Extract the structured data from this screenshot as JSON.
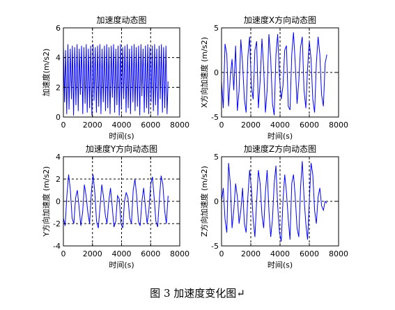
{
  "caption": "图 3  加速度变化图↵",
  "page_mark": "↵",
  "chart_data": [
    {
      "type": "line",
      "title": "加速度动态图",
      "xlabel": "时间(s)",
      "ylabel": "加速度(m/s2)",
      "xlim": [
        0,
        8000
      ],
      "ylim": [
        0,
        6
      ],
      "xticks": [
        0,
        2000,
        4000,
        6000,
        8000
      ],
      "yticks": [
        0,
        2,
        4,
        6
      ],
      "grid": "dashed at 2000, 4000, 6000 and y = 2, 4",
      "color": "#0000ff",
      "series": [
        {
          "x": [
            0,
            80,
            150,
            230,
            310,
            390,
            470,
            550,
            620,
            700,
            780,
            860,
            940,
            1020,
            1090,
            1170,
            1250,
            1330,
            1410,
            1490,
            1570,
            1640,
            1720,
            1800,
            1880,
            1960,
            2040,
            2110,
            2190,
            2270,
            2350,
            2430,
            2510,
            2580,
            2660,
            2740,
            2820,
            2900,
            2980,
            3050,
            3130,
            3210,
            3290,
            3370,
            3450,
            3520,
            3600,
            3680,
            3760,
            3840,
            3920,
            3990,
            4070,
            4150,
            4230,
            4310,
            4390,
            4460,
            4540,
            4620,
            4700,
            4780,
            4860,
            4930,
            5010,
            5090,
            5170,
            5250,
            5330,
            5400,
            5480,
            5560,
            5640,
            5720,
            5800,
            5870,
            5950,
            6030,
            6110,
            6190,
            6270,
            6340,
            6420,
            6500,
            6580,
            6660,
            6740,
            6810,
            6890,
            6970,
            7050,
            7130,
            7200
          ],
          "y": [
            4.8,
            1.0,
            4.5,
            0.2,
            4.9,
            0.5,
            4.6,
            1.2,
            4.8,
            0.1,
            4.7,
            0.8,
            4.9,
            0.4,
            4.6,
            1.5,
            4.8,
            0.2,
            4.7,
            0.9,
            4.9,
            0.3,
            4.6,
            0.6,
            4.8,
            0.1,
            4.9,
            1.1,
            4.7,
            0.3,
            4.8,
            0.7,
            4.9,
            0.2,
            4.6,
            1.0,
            4.8,
            0.4,
            4.9,
            0.6,
            4.7,
            0.2,
            4.8,
            1.3,
            4.9,
            0.3,
            4.6,
            0.8,
            4.8,
            0.1,
            4.9,
            0.5,
            4.7,
            1.2,
            4.8,
            0.3,
            4.9,
            0.6,
            4.6,
            0.2,
            4.8,
            1.0,
            4.9,
            0.4,
            4.7,
            0.7,
            4.8,
            0.1,
            4.9,
            1.4,
            4.6,
            0.3,
            4.8,
            0.6,
            4.9,
            0.2,
            4.7,
            1.0,
            4.8,
            0.4,
            4.9,
            0.8,
            4.6,
            0.1,
            4.8,
            1.2,
            4.9,
            0.3,
            4.7,
            0.6,
            4.8,
            0.2,
            2.4
          ]
        }
      ]
    },
    {
      "type": "line",
      "title": "加速度X方向动态图",
      "xlabel": "时间(s)",
      "ylabel": "X方向加速度 (m/s2)",
      "xlim": [
        0,
        8000
      ],
      "ylim": [
        -5,
        5
      ],
      "xticks": [
        0,
        2000,
        4000,
        6000,
        8000
      ],
      "yticks": [
        -5,
        0,
        5
      ],
      "grid": "dashed at 2000, 4000, 6000 and y = 0",
      "color": "#0000ff",
      "series": [
        {
          "x": [
            0,
            120,
            240,
            360,
            480,
            600,
            720,
            840,
            960,
            1080,
            1200,
            1320,
            1440,
            1560,
            1680,
            1800,
            1920,
            2040,
            2160,
            2280,
            2400,
            2520,
            2640,
            2760,
            2880,
            3000,
            3120,
            3240,
            3360,
            3480,
            3600,
            3720,
            3840,
            3960,
            4080,
            4200,
            4320,
            4440,
            4560,
            4680,
            4800,
            4920,
            5040,
            5160,
            5280,
            5400,
            5520,
            5640,
            5760,
            5880,
            6000,
            6120,
            6240,
            6360,
            6480,
            6600,
            6720,
            6840,
            6960,
            7080,
            7200
          ],
          "y": [
            -1.0,
            -4.0,
            3.2,
            2.0,
            -3.8,
            -0.5,
            1.5,
            -2.0,
            3.0,
            -4.3,
            -2.0,
            3.7,
            1.0,
            -3.0,
            -4.5,
            1.8,
            4.0,
            -1.5,
            -3.0,
            2.5,
            3.5,
            -4.0,
            -1.0,
            3.8,
            0.5,
            -4.5,
            -2.0,
            4.3,
            1.5,
            -3.5,
            -4.8,
            2.0,
            4.3,
            -0.5,
            -3.0,
            -1.5,
            2.5,
            3.0,
            -3.8,
            -4.2,
            2.0,
            4.5,
            1.0,
            -3.5,
            -1.0,
            2.8,
            4.0,
            -2.0,
            -4.0,
            0.5,
            3.5,
            1.5,
            -3.0,
            -4.5,
            1.0,
            4.0,
            2.0,
            -2.5,
            -3.8,
            1.0,
            2.0
          ]
        }
      ]
    },
    {
      "type": "line",
      "title": "加速度Y方向动态图",
      "xlabel": "时间(s)",
      "ylabel": "Y方向加速度 (m/s2)",
      "xlim": [
        0,
        8000
      ],
      "ylim": [
        -4,
        4
      ],
      "xticks": [
        0,
        2000,
        4000,
        6000,
        8000
      ],
      "yticks": [
        -4,
        -2,
        0,
        2,
        4
      ],
      "grid": "dashed at 2000, 4000, 6000 and y = -2, 0, 2",
      "color": "#0000ff",
      "series": [
        {
          "x": [
            0,
            120,
            240,
            360,
            480,
            600,
            720,
            840,
            960,
            1080,
            1200,
            1320,
            1440,
            1560,
            1680,
            1800,
            1920,
            2040,
            2160,
            2280,
            2400,
            2520,
            2640,
            2760,
            2880,
            3000,
            3120,
            3240,
            3360,
            3480,
            3600,
            3720,
            3840,
            3960,
            4080,
            4200,
            4320,
            4440,
            4560,
            4680,
            4800,
            4920,
            5040,
            5160,
            5280,
            5400,
            5520,
            5640,
            5760,
            5880,
            6000,
            6120,
            6240,
            6360,
            6480,
            6600,
            6720,
            6840,
            6960,
            7080,
            7200
          ],
          "y": [
            -1.5,
            -2.2,
            0.5,
            2.4,
            1.0,
            -1.5,
            -2.0,
            0.3,
            1.0,
            -0.5,
            -2.2,
            -1.0,
            1.5,
            0.5,
            -1.0,
            -2.0,
            0.8,
            2.4,
            0.8,
            -1.8,
            -2.4,
            -0.5,
            1.5,
            0.4,
            -1.2,
            -2.0,
            0.0,
            1.2,
            -0.5,
            -2.3,
            -1.8,
            0.5,
            0.2,
            -2.0,
            -2.4,
            0.0,
            0.8,
            0.3,
            -1.5,
            -2.0,
            1.0,
            2.0,
            0.5,
            -1.8,
            -2.2,
            0.0,
            1.2,
            -0.5,
            -2.0,
            -0.8,
            1.5,
            2.2,
            0.3,
            -1.8,
            -2.3,
            0.2,
            2.3,
            1.5,
            -0.8,
            -2.0,
            0.5
          ]
        }
      ]
    },
    {
      "type": "line",
      "title": "加速度Z方向动态图",
      "xlabel": "时间(s)",
      "ylabel": "Z方向加速度 (m/s2)",
      "xlim": [
        0,
        8000
      ],
      "ylim": [
        -5,
        5
      ],
      "xticks": [
        0,
        2000,
        4000,
        6000,
        8000
      ],
      "yticks": [
        -5,
        0,
        5
      ],
      "grid": "dashed at 2000, 4000, 6000 and y = 0",
      "color": "#0000ff",
      "series": [
        {
          "x": [
            0,
            120,
            240,
            360,
            480,
            600,
            720,
            840,
            960,
            1080,
            1200,
            1320,
            1440,
            1560,
            1680,
            1800,
            1920,
            2040,
            2160,
            2280,
            2400,
            2520,
            2640,
            2760,
            2880,
            3000,
            3120,
            3240,
            3360,
            3480,
            3600,
            3720,
            3840,
            3960,
            4080,
            4200,
            4320,
            4440,
            4560,
            4680,
            4800,
            4920,
            5040,
            5160,
            5280,
            5400,
            5520,
            5640,
            5760,
            5880,
            6000,
            6120,
            6240,
            6360,
            6480,
            6600,
            6720,
            6840,
            6960,
            7080,
            7200
          ],
          "y": [
            0.0,
            1.5,
            -2.0,
            -3.5,
            4.3,
            2.0,
            -3.0,
            -1.0,
            2.0,
            0.5,
            -2.5,
            -1.0,
            1.5,
            -2.5,
            -3.5,
            0.5,
            3.5,
            1.5,
            -2.0,
            -4.0,
            0.0,
            3.5,
            2.0,
            -1.5,
            -3.0,
            1.0,
            3.5,
            -1.0,
            -4.0,
            -2.0,
            2.0,
            4.0,
            -0.5,
            -3.5,
            -4.5,
            0.0,
            3.0,
            1.0,
            -2.0,
            -4.3,
            2.0,
            3.0,
            0.5,
            -3.0,
            -4.0,
            1.5,
            4.5,
            0.5,
            -2.5,
            -4.3,
            0.0,
            4.3,
            3.0,
            -1.0,
            -2.5,
            0.5,
            1.5,
            -0.5,
            -1.0,
            0.0,
            -0.2
          ]
        }
      ]
    }
  ]
}
